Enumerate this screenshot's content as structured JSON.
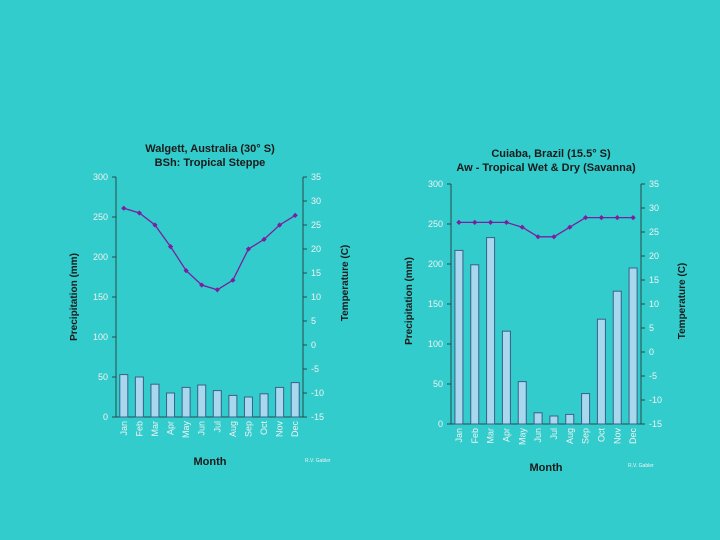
{
  "colors": {
    "background": "#33cccc",
    "bar_fill": "#a8d8ee",
    "bar_stroke": "#3a5f88",
    "line": "#7a1fa0",
    "axis": "#2a4a4a",
    "text": "#1a1a1a",
    "tick_text": "#f2f2f2"
  },
  "chart_data": [
    {
      "type": "bar",
      "title": "Walgett, Australia (30° S)",
      "subtitle": "BSh: Tropical Steppe",
      "categories": [
        "Jan",
        "Feb",
        "Mar",
        "Apr",
        "May",
        "Jun",
        "Jul",
        "Aug",
        "Sep",
        "Oct",
        "Nov",
        "Dec"
      ],
      "xlabel": "Month",
      "ylabel": "Precipitation (mm)",
      "y2label": "Temperature (C)",
      "ylim": [
        0,
        300
      ],
      "y2lim": [
        -15,
        35
      ],
      "yticks": [
        0,
        50,
        100,
        150,
        200,
        250,
        300
      ],
      "y2ticks": [
        -15,
        -10,
        -5,
        0,
        5,
        10,
        15,
        20,
        25,
        30,
        35
      ],
      "grid": false,
      "source_note": "R.V. Gabler",
      "series": [
        {
          "name": "Precipitation",
          "kind": "bar",
          "axis": "left",
          "values": [
            53,
            50,
            41,
            30,
            37,
            40,
            33,
            27,
            25,
            29,
            37,
            43
          ]
        },
        {
          "name": "Temperature",
          "kind": "line",
          "axis": "right",
          "values": [
            28.5,
            27.5,
            25,
            20.5,
            15.5,
            12.5,
            11.5,
            13.5,
            20,
            22,
            25,
            27
          ]
        }
      ]
    },
    {
      "type": "bar",
      "title": "Cuiaba, Brazil (15.5° S)",
      "subtitle": "Aw - Tropical Wet & Dry (Savanna)",
      "categories": [
        "Jan",
        "Feb",
        "Mar",
        "Apr",
        "May",
        "Jun",
        "Jul",
        "Aug",
        "Sep",
        "Oct",
        "Nov",
        "Dec"
      ],
      "xlabel": "Month",
      "ylabel": "Precipitation (mm)",
      "y2label": "Temperature (C)",
      "ylim": [
        0,
        300
      ],
      "y2lim": [
        -15,
        35
      ],
      "yticks": [
        0,
        50,
        100,
        150,
        200,
        250,
        300
      ],
      "y2ticks": [
        -15,
        -10,
        -5,
        0,
        5,
        10,
        15,
        20,
        25,
        30,
        35
      ],
      "grid": false,
      "source_note": "R.V. Gabler",
      "series": [
        {
          "name": "Precipitation",
          "kind": "bar",
          "axis": "left",
          "values": [
            217,
            199,
            233,
            116,
            53,
            14,
            10,
            12,
            38,
            131,
            166,
            195
          ]
        },
        {
          "name": "Temperature",
          "kind": "line",
          "axis": "right",
          "values": [
            27,
            27,
            27,
            27,
            26,
            24,
            24,
            26,
            28,
            28,
            28,
            28
          ]
        }
      ]
    }
  ]
}
